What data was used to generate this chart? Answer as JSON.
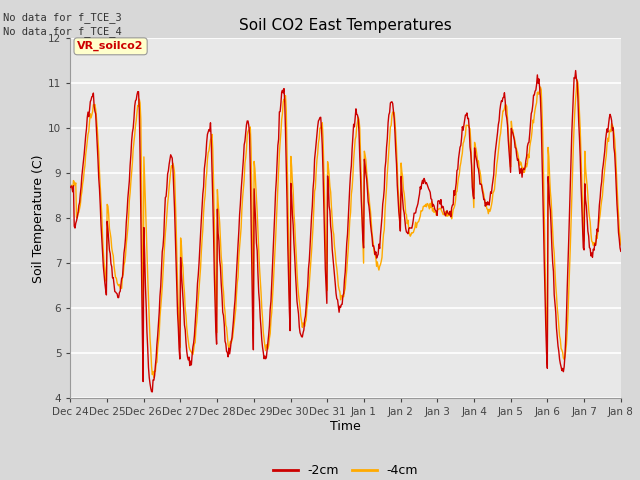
{
  "title": "Soil CO2 East Temperatures",
  "xlabel": "Time",
  "ylabel": "Soil Temperature (C)",
  "ylim": [
    4.0,
    12.0
  ],
  "yticks": [
    4.0,
    5.0,
    6.0,
    7.0,
    8.0,
    9.0,
    10.0,
    11.0,
    12.0
  ],
  "xtick_labels": [
    "Dec 24",
    "Dec 25",
    "Dec 26",
    "Dec 27",
    "Dec 28",
    "Dec 29",
    "Dec 30",
    "Dec 31",
    "Jan 1",
    "Jan 2",
    "Jan 3",
    "Jan 4",
    "Jan 5",
    "Jan 6",
    "Jan 7",
    "Jan 8"
  ],
  "color_2cm": "#cc0000",
  "color_4cm": "#ffaa00",
  "legend_labels": [
    "-2cm",
    "-4cm"
  ],
  "annotation_text": "VR_soilco2",
  "nodata_text1": "No data for f_TCE_3",
  "nodata_text2": "No data for f_TCE_4",
  "plot_bg_color": "#e8e8e8",
  "grid_color": "#ffffff",
  "fig_bg_color": "#d8d8d8"
}
